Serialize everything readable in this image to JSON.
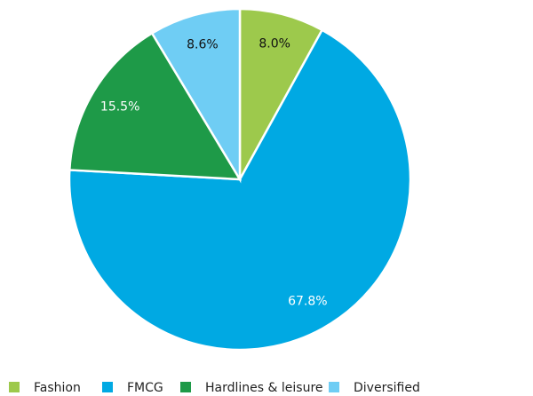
{
  "chart_data": {
    "type": "pie",
    "categories": [
      "Fashion",
      "FMCG",
      "Hardlines & leisure",
      "Diversified"
    ],
    "values": [
      8.0,
      67.8,
      15.5,
      8.6
    ],
    "value_labels": [
      "8.0%",
      "67.8%",
      "15.5%",
      "8.6%"
    ],
    "colors": [
      "#9dc94c",
      "#00a9e3",
      "#1e9a48",
      "#6fcdf4"
    ],
    "legend": "bottom"
  }
}
